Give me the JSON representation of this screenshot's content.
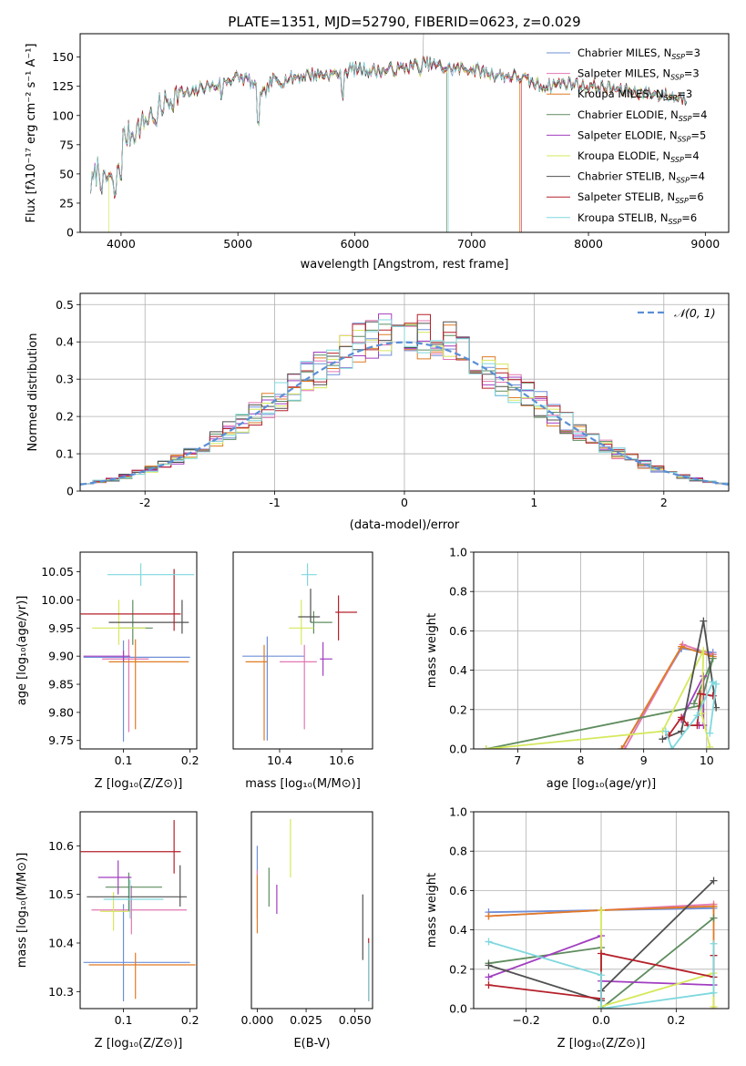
{
  "figure": {
    "title": "PLATE=1351, MJD=52790, FIBERID=0623, z=0.029"
  },
  "models": [
    {
      "label": "Chabrier MILES, N",
      "sub": "SSP",
      "n": "=3",
      "color": "#6f8fd8"
    },
    {
      "label": "Salpeter MILES, N",
      "sub": "SSP",
      "n": "=3",
      "color": "#e377b2"
    },
    {
      "label": "Kroupa MILES, N",
      "sub": "SSP",
      "n": "=3",
      "color": "#e07b24"
    },
    {
      "label": "Chabrier ELODIE, N",
      "sub": "SSP",
      "n": "=4",
      "color": "#5e8c5e"
    },
    {
      "label": "Salpeter ELODIE, N",
      "sub": "SSP",
      "n": "=5",
      "color": "#a23ec0"
    },
    {
      "label": "Kroupa ELODIE, N",
      "sub": "SSP",
      "n": "=4",
      "color": "#d6e85b"
    },
    {
      "label": "Chabrier STELIB, N",
      "sub": "SSP",
      "n": "=4",
      "color": "#505050"
    },
    {
      "label": "Salpeter STELIB, N",
      "sub": "SSP",
      "n": "=6",
      "color": "#b5202a"
    },
    {
      "label": "Kroupa STELIB, N",
      "sub": "SSP",
      "n": "=6",
      "color": "#7fd8de"
    }
  ],
  "chart_data": [
    {
      "type": "line",
      "title": "PLATE=1351, MJD=52790, FIBERID=0623, z=0.029",
      "xlabel": "wavelength [Angstrom, rest frame]",
      "ylabel": "Flux [fλ10⁻¹⁷ erg cm⁻² s⁻¹ A⁻¹]",
      "xlim": [
        3650,
        9200
      ],
      "ylim": [
        0,
        170
      ],
      "xticks": [
        4000,
        5000,
        6000,
        7000,
        8000,
        9000
      ],
      "yticks": [
        0,
        25,
        50,
        75,
        100,
        125,
        150
      ],
      "legend": "top-right",
      "x": [
        3750,
        3800,
        3850,
        3900,
        3950,
        4000,
        4100,
        4200,
        4300,
        4400,
        4500,
        4600,
        4700,
        4800,
        4900,
        5000,
        5100,
        5200,
        5300,
        5400,
        5500,
        5600,
        5800,
        6000,
        6200,
        6400,
        6600,
        6800,
        7000,
        7200,
        7400,
        7600,
        7800,
        8000,
        8200,
        8400,
        8600,
        8800
      ],
      "y": [
        40,
        55,
        40,
        50,
        30,
        80,
        85,
        95,
        105,
        112,
        120,
        118,
        125,
        125,
        130,
        133,
        130,
        115,
        130,
        130,
        133,
        135,
        135,
        140,
        138,
        140,
        145,
        140,
        140,
        135,
        133,
        125,
        128,
        125,
        123,
        120,
        118,
        115
      ],
      "grid": false
    },
    {
      "type": "line",
      "xlabel": "(data-model)/error",
      "ylabel": "Normed distribution",
      "xlim": [
        -2.5,
        2.5
      ],
      "ylim": [
        0,
        0.53
      ],
      "xticks": [
        -2,
        -1,
        0,
        1,
        2
      ],
      "yticks": [
        0.0,
        0.1,
        0.2,
        0.3,
        0.4,
        0.5
      ],
      "legend": "top-right",
      "series": [
        {
          "name": "𝒩(0, 1)",
          "type": "normal-pdf",
          "mean": 0,
          "sigma": 1
        }
      ],
      "histogram_bins": 50,
      "grid": true
    },
    {
      "type": "scatter",
      "xlabel": "Z [log₁₀(Z/Z⊙)]",
      "ylabel": "age  [log₁₀(age/yr)]",
      "xlim": [
        0.035,
        0.21
      ],
      "ylim": [
        9.735,
        10.085
      ],
      "xticks": [
        "0.1",
        "0.2"
      ],
      "yticks": [
        "9.75",
        "9.80",
        "9.85",
        "9.90",
        "9.95",
        "10.00",
        "10.05"
      ],
      "points": [
        {
          "x": 0.1,
          "y": 9.898,
          "xerr": [
            0.06,
            0.1
          ],
          "yerr": [
            0.15,
            0.03
          ]
        },
        {
          "x": 0.108,
          "y": 9.895,
          "xerr": [
            0.04,
            0.03
          ],
          "yerr": [
            0.13,
            0.035
          ]
        },
        {
          "x": 0.118,
          "y": 9.89,
          "xerr": [
            0.04,
            0.08
          ],
          "yerr": [
            0.12,
            0.04
          ]
        },
        {
          "x": 0.114,
          "y": 9.95,
          "xerr": [
            0.02,
            0.03
          ],
          "yerr": [
            0.03,
            0.05
          ]
        },
        {
          "x": 0.1,
          "y": 9.9,
          "xerr": [
            0.06,
            0.01
          ],
          "yerr": [
            0.01,
            0.01
          ]
        },
        {
          "x": 0.093,
          "y": 9.95,
          "xerr": [
            0.04,
            0.04
          ],
          "yerr": [
            0.03,
            0.05
          ]
        },
        {
          "x": 0.188,
          "y": 9.96,
          "xerr": [
            0.11,
            0.01
          ],
          "yerr": [
            0.02,
            0.04
          ]
        },
        {
          "x": 0.176,
          "y": 9.975,
          "xerr": [
            0.14,
            0.01
          ],
          "yerr": [
            0.03,
            0.08
          ]
        },
        {
          "x": 0.126,
          "y": 10.045,
          "xerr": [
            0.05,
            0.08
          ],
          "yerr": [
            0.02,
            0.02
          ]
        }
      ]
    },
    {
      "type": "scatter",
      "xlabel": "mass [log₁₀(M/M⊙)]",
      "xlim": [
        10.25,
        10.7
      ],
      "ylim": [
        9.735,
        10.085
      ],
      "xticks": [
        "10.4",
        "10.6"
      ],
      "points": [
        {
          "x": 10.36,
          "y": 9.9,
          "xerr": [
            0.08,
            0.12
          ],
          "yerr": [
            0.15,
            0.035
          ]
        },
        {
          "x": 10.48,
          "y": 9.89,
          "xerr": [
            0.08,
            0.04
          ],
          "yerr": [
            0.12,
            0.03
          ]
        },
        {
          "x": 10.35,
          "y": 9.89,
          "xerr": [
            0.06,
            0.01
          ],
          "yerr": [
            0.14,
            0.03
          ]
        },
        {
          "x": 10.51,
          "y": 9.96,
          "xerr": [
            0.01,
            0.06
          ],
          "yerr": [
            0.02,
            0.02
          ]
        },
        {
          "x": 10.54,
          "y": 9.895,
          "xerr": [
            0.01,
            0.03
          ],
          "yerr": [
            0.03,
            0.03
          ]
        },
        {
          "x": 10.47,
          "y": 9.95,
          "xerr": [
            0.04,
            0.04
          ],
          "yerr": [
            0.03,
            0.05
          ]
        },
        {
          "x": 10.5,
          "y": 9.97,
          "xerr": [
            0.04,
            0.03
          ],
          "yerr": [
            0.01,
            0.05
          ]
        },
        {
          "x": 10.59,
          "y": 9.978,
          "xerr": [
            0.01,
            0.06
          ],
          "yerr": [
            0.05,
            0.03
          ]
        },
        {
          "x": 10.49,
          "y": 10.045,
          "xerr": [
            0.02,
            0.03
          ],
          "yerr": [
            0.02,
            0.02
          ]
        }
      ]
    },
    {
      "type": "line",
      "xlabel": "age  [log₁₀(age/yr)]",
      "ylabel": "mass weight",
      "xlim": [
        6.3,
        10.35
      ],
      "ylim": [
        0,
        1
      ],
      "xticks": [
        "7",
        "8",
        "9",
        "10"
      ],
      "yticks": [
        "0.0",
        "0.2",
        "0.4",
        "0.6",
        "0.8",
        "1.0"
      ],
      "grid": true,
      "series": [
        {
          "x": [
            8.65,
            9.6,
            10.1
          ],
          "y": [
            0.0,
            0.51,
            0.49
          ]
        },
        {
          "x": [
            8.7,
            9.62,
            10.1
          ],
          "y": [
            0.0,
            0.53,
            0.48
          ]
        },
        {
          "x": [
            8.65,
            9.6,
            10.1
          ],
          "y": [
            0.0,
            0.52,
            0.47
          ]
        },
        {
          "x": [
            6.5,
            9.9,
            10.1,
            9.8
          ],
          "y": [
            0.0,
            0.22,
            0.46,
            0.23
          ]
        },
        {
          "x": [
            9.6,
            9.95,
            9.95,
            9.88
          ],
          "y": [
            0.15,
            0.37,
            0.12,
            0.12
          ]
        },
        {
          "x": [
            6.5,
            9.3,
            9.95,
            9.92,
            10.05
          ],
          "y": [
            0.0,
            0.09,
            0.5,
            0.18,
            0.01
          ]
        },
        {
          "x": [
            9.3,
            9.6,
            9.95,
            10.15
          ],
          "y": [
            0.05,
            0.09,
            0.65,
            0.21
          ]
        },
        {
          "x": [
            9.4,
            9.6,
            9.7,
            9.85,
            9.9,
            10.1
          ],
          "y": [
            0.07,
            0.16,
            0.12,
            0.12,
            0.28,
            0.27
          ]
        },
        {
          "x": [
            9.35,
            9.45,
            9.85,
            10.1,
            10.15,
            10.05
          ],
          "y": [
            0.09,
            0.0,
            0.17,
            0.34,
            0.33,
            0.08
          ]
        }
      ]
    },
    {
      "type": "scatter",
      "xlabel": "Z [log₁₀(Z/Z⊙)]",
      "ylabel": "mass [log₁₀(M/M⊙)]",
      "xlim": [
        0.035,
        0.21
      ],
      "ylim": [
        10.265,
        10.67
      ],
      "xticks": [
        "0.1",
        "0.2"
      ],
      "yticks": [
        "10.3",
        "10.4",
        "10.5",
        "10.6"
      ],
      "points": [
        {
          "x": 0.1,
          "y": 10.36,
          "xerr": [
            0.06,
            0.1
          ],
          "yerr": [
            0.08,
            0.12
          ]
        },
        {
          "x": 0.112,
          "y": 10.468,
          "xerr": [
            0.06,
            0.083
          ],
          "yerr": [
            0.05,
            0.05
          ]
        },
        {
          "x": 0.118,
          "y": 10.355,
          "xerr": [
            0.07,
            0.09
          ],
          "yerr": [
            0.07,
            0.025
          ]
        },
        {
          "x": 0.108,
          "y": 10.515,
          "xerr": [
            0.035,
            0.05
          ],
          "yerr": [
            0.05,
            0.03
          ]
        },
        {
          "x": 0.092,
          "y": 10.535,
          "xerr": [
            0.03,
            0.02
          ],
          "yerr": [
            0.035,
            0.035
          ]
        },
        {
          "x": 0.085,
          "y": 10.465,
          "xerr": [
            0.02,
            0.025
          ],
          "yerr": [
            0.04,
            0.04
          ]
        },
        {
          "x": 0.185,
          "y": 10.495,
          "xerr": [
            0.14,
            0.01
          ],
          "yerr": [
            0.02,
            0.065
          ]
        },
        {
          "x": 0.176,
          "y": 10.588,
          "xerr": [
            0.14,
            0.01
          ],
          "yerr": [
            0.045,
            0.065
          ]
        },
        {
          "x": 0.11,
          "y": 10.49,
          "xerr": [
            0.04,
            0.05
          ],
          "yerr": [
            0.04,
            0.04
          ]
        }
      ]
    },
    {
      "type": "scatter",
      "xlabel": "E(B-V)",
      "xlim": [
        -0.003,
        0.059
      ],
      "ylim": [
        10.265,
        10.67
      ],
      "xticks": [
        "0.000",
        "0.025",
        "0.050"
      ],
      "points": [
        {
          "x": 0.0,
          "y": 10.57,
          "yerr": [
            0.03,
            0.03
          ]
        },
        {
          "x": 0.0,
          "y": 10.5,
          "yerr": [
            0.05,
            0.05
          ]
        },
        {
          "x": 0.0,
          "y": 10.48,
          "yerr": [
            0.06,
            0.06
          ]
        },
        {
          "x": 0.006,
          "y": 10.515,
          "yerr": [
            0.04,
            0.04
          ]
        },
        {
          "x": 0.01,
          "y": 10.49,
          "yerr": [
            0.03,
            0.03
          ]
        },
        {
          "x": 0.017,
          "y": 10.575,
          "yerr": [
            0.04,
            0.08
          ]
        },
        {
          "x": 0.054,
          "y": 10.43,
          "yerr": [
            0.065,
            0.07
          ]
        },
        {
          "x": 0.057,
          "y": 10.33,
          "yerr": [
            0.05,
            0.08
          ]
        },
        {
          "x": 0.057,
          "y": 10.35,
          "yerr": [
            0.07,
            0.05
          ]
        }
      ]
    },
    {
      "type": "line",
      "xlabel": "Z [log₁₀(Z/Z⊙)]",
      "ylabel": "mass weight",
      "xlim": [
        -0.34,
        0.34
      ],
      "ylim": [
        0,
        1
      ],
      "xticks": [
        "−0.2",
        "0.0",
        "0.2"
      ],
      "yticks": [
        "0.0",
        "0.2",
        "0.4",
        "0.6",
        "0.8",
        "1.0"
      ],
      "grid": true,
      "series": [
        {
          "x": [
            -0.3,
            0.0,
            0.3
          ],
          "y": [
            0.49,
            0.5,
            0.51
          ]
        },
        {
          "x": [
            -0.3,
            0.0,
            0.3
          ],
          "y": [
            0.47,
            0.5,
            0.53
          ]
        },
        {
          "x": [
            -0.3,
            0.0,
            0.3,
            0.3
          ],
          "y": [
            0.47,
            0.5,
            0.52,
            0.0
          ]
        },
        {
          "x": [
            -0.3,
            0.0,
            0.0,
            0.3
          ],
          "y": [
            0.23,
            0.31,
            0.0,
            0.46
          ]
        },
        {
          "x": [
            -0.3,
            0.0,
            0.0,
            0.3
          ],
          "y": [
            0.16,
            0.37,
            0.14,
            0.12
          ]
        },
        {
          "x": [
            0.0,
            0.0,
            0.3,
            0.3
          ],
          "y": [
            0.5,
            0.01,
            0.18,
            0.01
          ]
        },
        {
          "x": [
            -0.3,
            0.0,
            0.0,
            0.3
          ],
          "y": [
            0.22,
            0.04,
            0.09,
            0.65
          ]
        },
        {
          "x": [
            -0.3,
            0.0,
            0.0,
            0.3,
            0.3
          ],
          "y": [
            0.12,
            0.05,
            0.28,
            0.16,
            0.27
          ]
        },
        {
          "x": [
            -0.3,
            0.0,
            0.0,
            0.3,
            0.3
          ],
          "y": [
            0.34,
            0.17,
            0.0,
            0.08,
            0.33
          ]
        }
      ]
    }
  ]
}
